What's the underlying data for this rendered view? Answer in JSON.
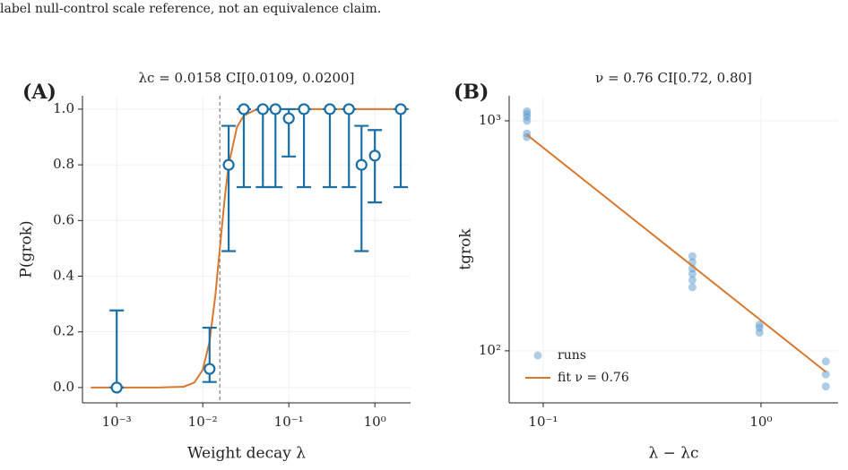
{
  "caption": "label null-control scale reference, not an equivalence claim.",
  "chart_data": [
    {
      "type": "errorbar",
      "panel_label": "(A)",
      "title": "λc = 0.0158 CI[0.0109, 0.0200]",
      "x_label": "Weight decay λ",
      "y_label": "P(grok)",
      "x_log": true,
      "y_log": false,
      "xlim": [
        0.0004,
        2.6
      ],
      "ylim": [
        -0.055,
        1.048
      ],
      "xticks": [
        {
          "value": 0.001,
          "label": "10⁻³"
        },
        {
          "value": 0.01,
          "label": "10⁻²"
        },
        {
          "value": 0.1,
          "label": "10⁻¹"
        },
        {
          "value": 1,
          "label": "10⁰"
        }
      ],
      "yticks": [
        {
          "value": 0,
          "label": "0.0"
        },
        {
          "value": 0.2,
          "label": "0.2"
        },
        {
          "value": 0.4,
          "label": "0.4"
        },
        {
          "value": 0.6,
          "label": "0.6"
        },
        {
          "value": 0.8,
          "label": "0.8"
        },
        {
          "value": 1,
          "label": "1.0"
        }
      ],
      "grid": true,
      "reference_line": 0.0158,
      "reference_color": "#808080",
      "series": [
        {
          "kind": "line",
          "color": "#d9782d",
          "x": [
            0.0005,
            0.001,
            0.003,
            0.006,
            0.008,
            0.01,
            0.012,
            0.014,
            0.0158,
            0.018,
            0.02,
            0.025,
            0.03,
            0.04,
            0.05,
            0.1,
            1,
            2.5
          ],
          "values": [
            0,
            0,
            0,
            0.003,
            0.018,
            0.064,
            0.165,
            0.33,
            0.5,
            0.68,
            0.8,
            0.936,
            0.977,
            0.996,
            0.999,
            1,
            1,
            1
          ]
        },
        {
          "kind": "errorbar",
          "color": "#1a6fa6",
          "x": [
            0.001,
            0.012,
            0.02,
            0.03,
            0.05,
            0.07,
            0.1,
            0.15,
            0.3,
            0.5,
            0.7,
            1,
            2
          ],
          "values": [
            0,
            0.067,
            0.8,
            1,
            1,
            1,
            0.967,
            1,
            1,
            1,
            0.8,
            0.833,
            1
          ],
          "lower": [
            0,
            0.02,
            0.49,
            0.72,
            0.72,
            0.72,
            0.83,
            0.72,
            0.72,
            0.72,
            0.49,
            0.665,
            0.72
          ],
          "upper": [
            0.277,
            0.215,
            0.94,
            1,
            1,
            1,
            1,
            1,
            1,
            1,
            0.94,
            0.925,
            1
          ]
        }
      ]
    },
    {
      "type": "scatter",
      "panel_label": "(B)",
      "title": "ν = 0.76 CI[0.72, 0.80]",
      "x_label": "λ − λc",
      "y_label": "tgrok",
      "x_log": true,
      "y_log": true,
      "xlim": [
        0.0698,
        2.26
      ],
      "ylim": [
        59.4,
        1285
      ],
      "xticks": [
        {
          "value": 0.1,
          "label": "10⁻¹"
        },
        {
          "value": 1,
          "label": "10⁰"
        }
      ],
      "yticks": [
        {
          "value": 100,
          "label": "10²"
        },
        {
          "value": 1000,
          "label": "10³"
        }
      ],
      "grid": true,
      "legend": "lower left",
      "series": [
        {
          "name": "runs",
          "kind": "scatter",
          "color": "#5b9bd0",
          "x": [
            0.0842,
            0.0842,
            0.0842,
            0.0842,
            0.0842,
            0.0842,
            0.4842,
            0.4842,
            0.4842,
            0.4842,
            0.4842,
            0.4842,
            0.9842,
            0.9842,
            0.9842,
            1.9842,
            1.9842,
            1.9842
          ],
          "values": [
            1100,
            1070,
            1040,
            1000,
            880,
            850,
            258,
            243,
            228,
            216,
            203,
            189,
            130,
            126,
            120,
            90,
            79,
            70
          ]
        },
        {
          "name": "fit ν = 0.76",
          "kind": "line",
          "color": "#d9782d",
          "x": [
            0.0842,
            1.9842
          ],
          "values": [
            870,
            81
          ]
        }
      ]
    }
  ]
}
